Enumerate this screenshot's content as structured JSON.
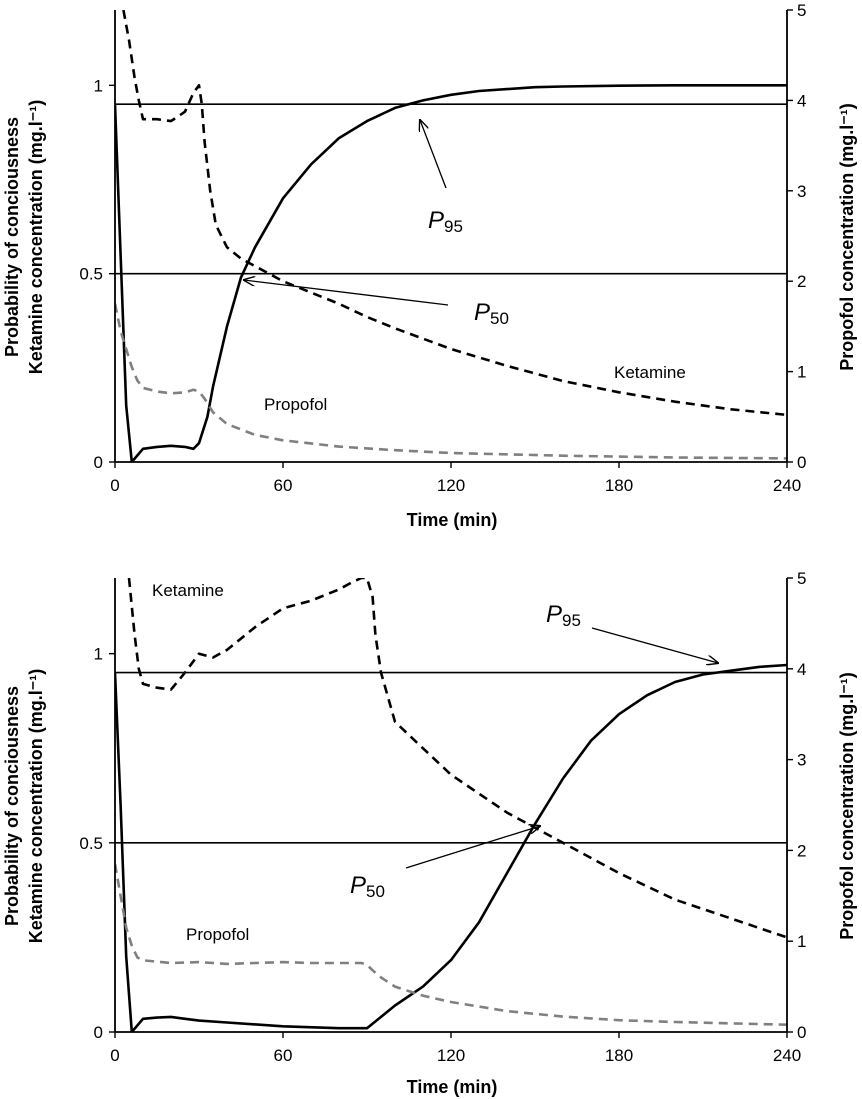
{
  "chart_data": [
    {
      "type": "line",
      "xlabel": "Time (min)",
      "ylabel_left": [
        "Probability of conciousness",
        "Ketamine concentration (mg.l⁻¹)"
      ],
      "ylabel_right": "Propofol concentration (mg.l⁻¹)",
      "xlim": [
        0,
        240
      ],
      "xticks": [
        "0",
        "60",
        "120",
        "180",
        "240"
      ],
      "ylim_left": [
        0,
        1.2
      ],
      "yticks_left": [
        "0",
        "0.5",
        "1"
      ],
      "ylim_right": [
        0,
        5
      ],
      "yticks_right": [
        "0",
        "1",
        "2",
        "3",
        "4",
        "5"
      ],
      "reference_lines": [
        {
          "label_main": "P",
          "label_sub": "95",
          "y": 0.95
        },
        {
          "label_main": "P",
          "label_sub": "50",
          "y": 0.5
        }
      ],
      "series": [
        {
          "name": "",
          "axis": "left",
          "color": "#000000",
          "dash": "solid",
          "x": [
            0,
            2,
            4,
            6,
            10,
            15,
            20,
            25,
            28,
            30,
            33,
            35,
            40,
            45,
            50,
            60,
            70,
            80,
            90,
            100,
            110,
            120,
            130,
            140,
            150,
            160,
            180,
            200,
            220,
            240
          ],
          "y": [
            0.95,
            0.55,
            0.15,
            0.0,
            0.035,
            0.04,
            0.043,
            0.04,
            0.035,
            0.05,
            0.12,
            0.2,
            0.36,
            0.49,
            0.57,
            0.7,
            0.79,
            0.86,
            0.905,
            0.94,
            0.96,
            0.975,
            0.985,
            0.99,
            0.995,
            0.997,
            0.999,
            1.0,
            1.0,
            1.0
          ]
        },
        {
          "name": "Ketamine",
          "axis": "left",
          "color": "#000000",
          "dash": "dashed",
          "x": [
            3,
            5,
            7,
            8.5,
            10,
            15,
            20,
            25,
            28,
            30,
            31,
            32,
            34,
            36,
            40,
            45,
            50,
            60,
            70,
            80,
            90,
            100,
            120,
            140,
            160,
            180,
            200,
            220,
            240
          ],
          "y": [
            1.2,
            1.12,
            1.02,
            0.96,
            0.91,
            0.91,
            0.905,
            0.93,
            0.98,
            1.0,
            0.95,
            0.85,
            0.72,
            0.63,
            0.57,
            0.54,
            0.52,
            0.48,
            0.45,
            0.42,
            0.385,
            0.355,
            0.3,
            0.255,
            0.215,
            0.185,
            0.16,
            0.14,
            0.125
          ]
        },
        {
          "name": "Propofol",
          "axis": "right",
          "color": "#808080",
          "dash": "dashed",
          "x": [
            0,
            2,
            4,
            6,
            8,
            10,
            15,
            20,
            25,
            28,
            30,
            32,
            35,
            40,
            50,
            60,
            80,
            100,
            120,
            160,
            200,
            240
          ],
          "y": [
            1.75,
            1.45,
            1.25,
            1.05,
            0.9,
            0.82,
            0.78,
            0.76,
            0.77,
            0.8,
            0.78,
            0.7,
            0.55,
            0.42,
            0.3,
            0.24,
            0.17,
            0.13,
            0.1,
            0.07,
            0.05,
            0.04
          ]
        }
      ],
      "annotations": [
        {
          "text": "Ketamine",
          "series": "Ketamine"
        },
        {
          "text": "Propofol",
          "series": "Propofol"
        }
      ]
    },
    {
      "type": "line",
      "xlabel": "Time (min)",
      "ylabel_left": [
        "Probability of conciousness",
        "Ketamine concentration (mg.l⁻¹)"
      ],
      "ylabel_right": "Propofol concentration (mg.l⁻¹)",
      "xlim": [
        0,
        240
      ],
      "xticks": [
        "0",
        "60",
        "120",
        "180",
        "240"
      ],
      "ylim_left": [
        0,
        1.2
      ],
      "yticks_left": [
        "0",
        "0.5",
        "1"
      ],
      "ylim_right": [
        0,
        5
      ],
      "yticks_right": [
        "0",
        "1",
        "2",
        "3",
        "4",
        "5"
      ],
      "reference_lines": [
        {
          "label_main": "P",
          "label_sub": "95",
          "y": 0.95
        },
        {
          "label_main": "P",
          "label_sub": "50",
          "y": 0.5
        }
      ],
      "series": [
        {
          "name": "",
          "axis": "left",
          "color": "#000000",
          "dash": "solid",
          "x": [
            0,
            2,
            4,
            6,
            10,
            15,
            20,
            25,
            30,
            40,
            60,
            80,
            85,
            90,
            95,
            100,
            110,
            120,
            130,
            140,
            150,
            160,
            170,
            180,
            190,
            200,
            210,
            220,
            230,
            240
          ],
          "y": [
            0.95,
            0.6,
            0.2,
            0.0,
            0.035,
            0.038,
            0.04,
            0.035,
            0.03,
            0.025,
            0.015,
            0.01,
            0.01,
            0.01,
            0.04,
            0.07,
            0.12,
            0.19,
            0.29,
            0.42,
            0.55,
            0.67,
            0.77,
            0.84,
            0.89,
            0.925,
            0.945,
            0.955,
            0.965,
            0.97
          ]
        },
        {
          "name": "Ketamine",
          "axis": "left",
          "color": "#000000",
          "dash": "dashed",
          "x": [
            5,
            7,
            8.5,
            10,
            15,
            20,
            25,
            30,
            35,
            40,
            50,
            60,
            70,
            80,
            85,
            88,
            90,
            92,
            93,
            95,
            100,
            110,
            120,
            140,
            160,
            180,
            200,
            220,
            240
          ],
          "y": [
            1.2,
            1.05,
            0.96,
            0.92,
            0.91,
            0.905,
            0.95,
            1.0,
            0.99,
            1.01,
            1.07,
            1.12,
            1.14,
            1.17,
            1.19,
            1.2,
            1.2,
            1.15,
            1.05,
            0.95,
            0.82,
            0.75,
            0.68,
            0.58,
            0.5,
            0.42,
            0.35,
            0.3,
            0.25
          ]
        },
        {
          "name": "Propofol",
          "axis": "right",
          "color": "#808080",
          "dash": "dashed",
          "x": [
            0,
            2,
            4,
            6,
            8,
            10,
            20,
            30,
            40,
            50,
            60,
            70,
            80,
            88,
            90,
            92,
            95,
            100,
            110,
            120,
            140,
            160,
            180,
            200,
            240
          ],
          "y": [
            1.85,
            1.5,
            1.15,
            0.95,
            0.82,
            0.79,
            0.76,
            0.77,
            0.75,
            0.76,
            0.77,
            0.76,
            0.76,
            0.76,
            0.74,
            0.68,
            0.6,
            0.5,
            0.4,
            0.33,
            0.23,
            0.17,
            0.13,
            0.11,
            0.08
          ]
        }
      ],
      "annotations": [
        {
          "text": "Ketamine",
          "series": "Ketamine"
        },
        {
          "text": "Propofol",
          "series": "Propofol"
        }
      ]
    }
  ]
}
